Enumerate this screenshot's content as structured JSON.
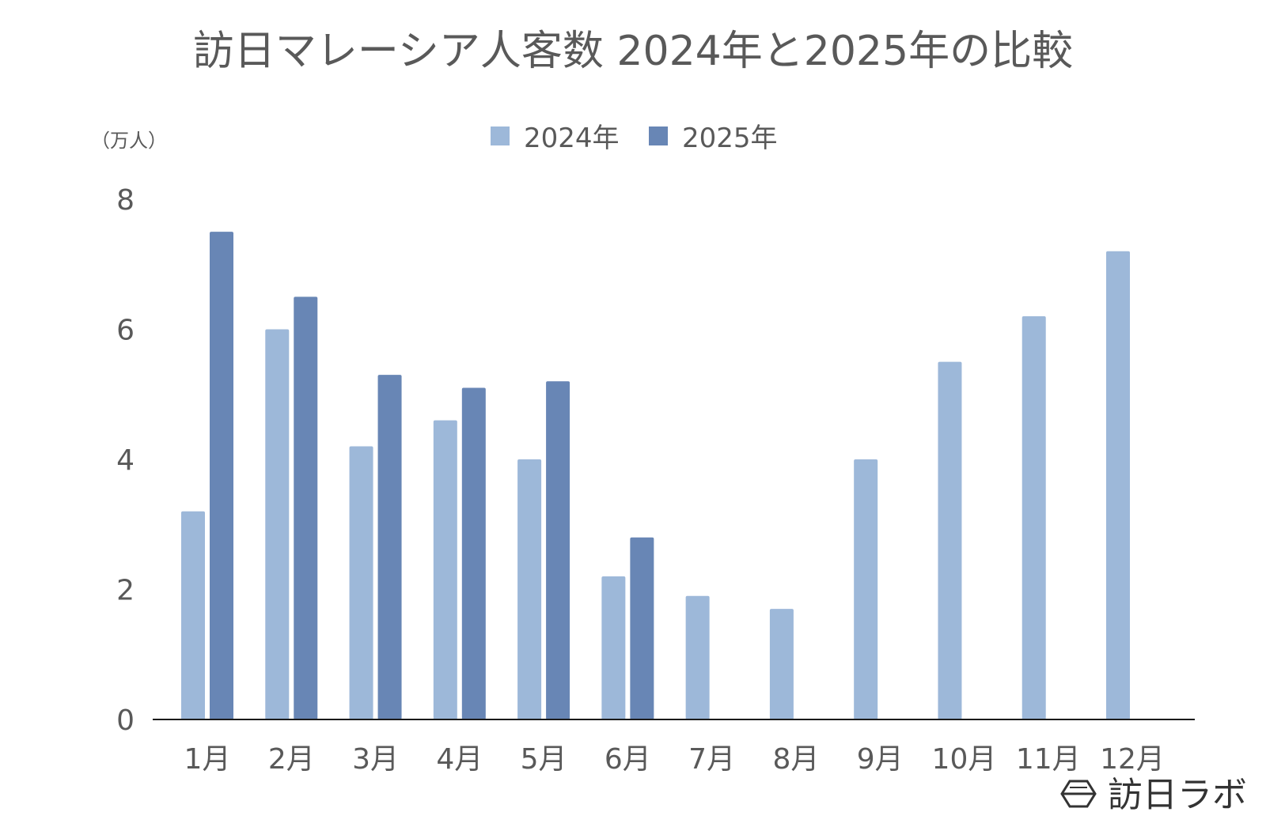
{
  "chart_data": {
    "type": "bar",
    "title": "訪日マレーシア人客数 2024年と2025年の比較",
    "unit_label": "（万人）",
    "categories": [
      "1月",
      "2月",
      "3月",
      "4月",
      "5月",
      "6月",
      "7月",
      "8月",
      "9月",
      "10月",
      "11月",
      "12月"
    ],
    "series": [
      {
        "name": "2024年",
        "color": "#9db8d9",
        "values": [
          3.2,
          6.0,
          4.2,
          4.6,
          4.0,
          2.2,
          1.9,
          1.7,
          4.0,
          5.5,
          6.2,
          7.2
        ]
      },
      {
        "name": "2025年",
        "color": "#6886b5",
        "values": [
          7.5,
          6.5,
          5.3,
          5.1,
          5.2,
          2.8,
          null,
          null,
          null,
          null,
          null,
          null
        ]
      }
    ],
    "ylim": [
      0,
      8
    ],
    "yticks": [
      "0",
      "2",
      "4",
      "6",
      "8"
    ],
    "grid": false,
    "legend_position": "top-center"
  },
  "brand": {
    "name": "訪日ラボ",
    "icon": "hexagon-logo-icon"
  }
}
